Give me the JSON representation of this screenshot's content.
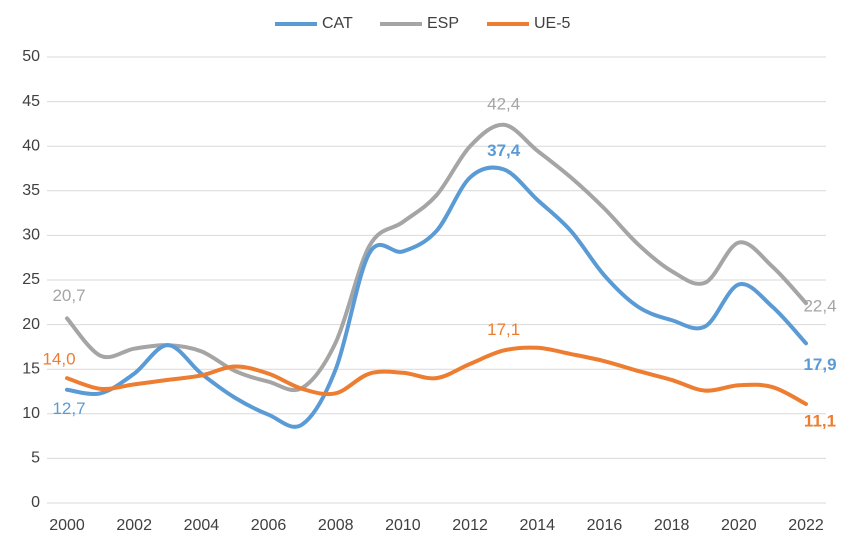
{
  "chart_data": {
    "type": "line",
    "x": [
      2000,
      2001,
      2002,
      2003,
      2004,
      2005,
      2006,
      2007,
      2008,
      2009,
      2010,
      2011,
      2012,
      2013,
      2014,
      2015,
      2016,
      2017,
      2018,
      2019,
      2020,
      2021,
      2022
    ],
    "xlim": [
      2000,
      2022
    ],
    "xticks": [
      2000,
      2002,
      2004,
      2006,
      2008,
      2010,
      2012,
      2014,
      2016,
      2018,
      2020,
      2022
    ],
    "ylim": [
      0,
      50
    ],
    "yticks": [
      0,
      5,
      10,
      15,
      20,
      25,
      30,
      35,
      40,
      45,
      50
    ],
    "grid": true,
    "legend": "top",
    "series": [
      {
        "name": "CAT",
        "color": "#5b9bd5",
        "values": [
          12.7,
          12.3,
          14.5,
          17.7,
          14.5,
          11.8,
          9.9,
          8.8,
          15.0,
          28.0,
          28.2,
          30.5,
          36.5,
          37.4,
          34.0,
          30.5,
          25.5,
          22.0,
          20.5,
          19.8,
          24.5,
          22.0,
          17.9
        ],
        "value_labels": [
          "12,7",
          null,
          null,
          null,
          null,
          null,
          null,
          null,
          null,
          null,
          null,
          null,
          null,
          "37,4",
          null,
          null,
          null,
          null,
          null,
          null,
          null,
          null,
          "17,9"
        ]
      },
      {
        "name": "ESP",
        "color": "#a5a5a5",
        "values": [
          20.7,
          16.5,
          17.3,
          17.7,
          17.0,
          14.8,
          13.6,
          12.9,
          18.0,
          28.8,
          31.5,
          34.5,
          40.0,
          42.4,
          39.5,
          36.5,
          33.0,
          29.0,
          26.0,
          24.7,
          29.2,
          26.5,
          22.4
        ],
        "value_labels": [
          "20,7",
          null,
          null,
          null,
          null,
          null,
          null,
          null,
          null,
          null,
          null,
          null,
          null,
          "42,4",
          null,
          null,
          null,
          null,
          null,
          null,
          null,
          null,
          "22,4"
        ]
      },
      {
        "name": "UE-5",
        "color": "#ed7d31",
        "values": [
          14.0,
          12.8,
          13.3,
          13.8,
          14.3,
          15.3,
          14.5,
          12.8,
          12.3,
          14.5,
          14.6,
          14.0,
          15.6,
          17.1,
          17.4,
          16.7,
          15.9,
          14.8,
          13.8,
          12.6,
          13.2,
          13.0,
          11.1
        ],
        "value_labels": [
          "14,0",
          null,
          null,
          null,
          null,
          null,
          null,
          null,
          null,
          null,
          null,
          null,
          null,
          "17,1",
          null,
          null,
          null,
          null,
          null,
          null,
          null,
          null,
          "11,1"
        ]
      }
    ]
  }
}
